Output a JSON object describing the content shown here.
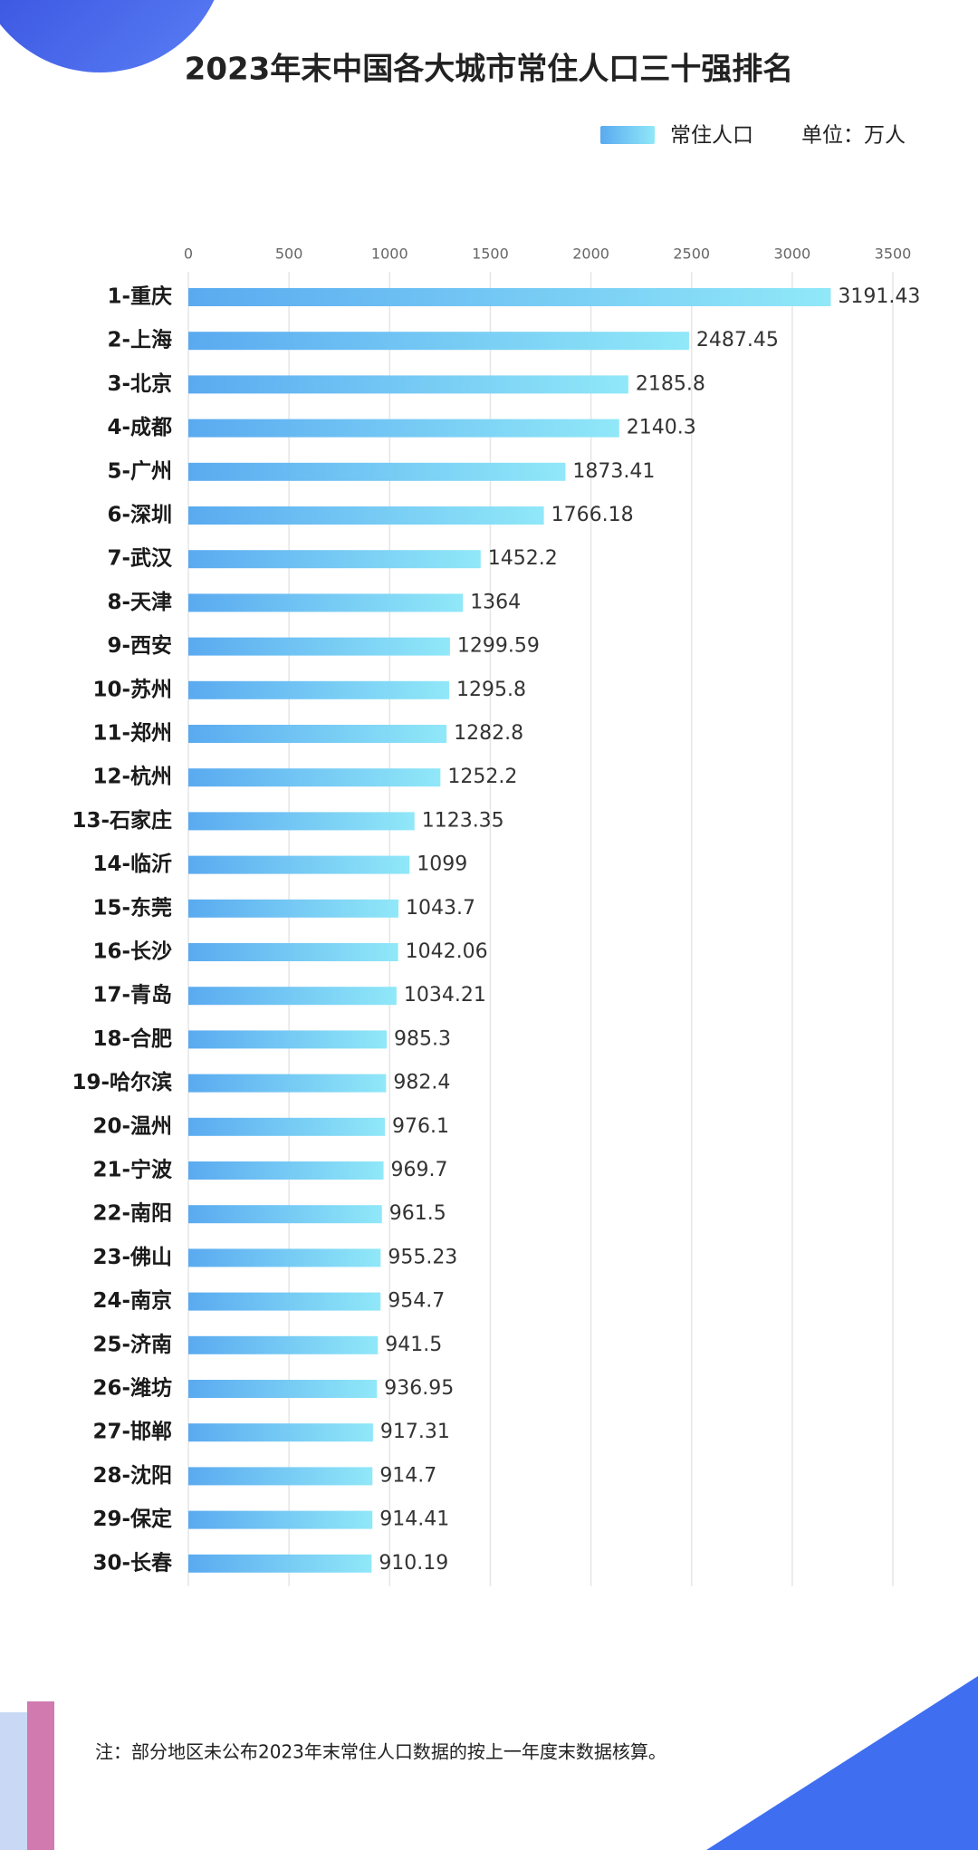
{
  "chart_data": {
    "type": "hbar",
    "title": "2023年末中国各大城市常住人口三十强排名",
    "unit_label": "单位：万人",
    "note": "注：部分地区未公布2023年末常住人口数据的按上一年度末数据核算。",
    "categories": [
      "1-重庆",
      "2-上海",
      "3-北京",
      "4-成都",
      "5-广州",
      "6-深圳",
      "7-武汉",
      "8-天津",
      "9-西安",
      "10-苏州",
      "11-郑州",
      "12-杭州",
      "13-石家庄",
      "14-临沂",
      "15-东莞",
      "16-长沙",
      "17-青岛",
      "18-合肥",
      "19-哈尔滨",
      "20-温州",
      "21-宁波",
      "22-南阳",
      "23-佛山",
      "24-南京",
      "25-济南",
      "26-潍坊",
      "27-邯郸",
      "28-沈阳",
      "29-保定",
      "30-长春"
    ],
    "series": [
      {
        "name": "常住人口",
        "color": [
          "#5aaaf0",
          "#90e8f8"
        ],
        "values": [
          3191.43,
          2487.45,
          2185.8,
          2140.3,
          1873.41,
          1766.18,
          1452.2,
          1364,
          1299.59,
          1295.8,
          1282.8,
          1252.2,
          1123.35,
          1099,
          1043.7,
          1042.06,
          1034.21,
          985.3,
          982.4,
          976.1,
          969.7,
          961.5,
          955.23,
          954.7,
          941.5,
          936.95,
          917.31,
          914.7,
          914.41,
          910.19
        ]
      }
    ],
    "xlim": [
      0,
      3500
    ],
    "xticks": [
      0,
      500,
      1000,
      1500,
      2000,
      2500,
      3000,
      3500
    ],
    "grid": true
  }
}
